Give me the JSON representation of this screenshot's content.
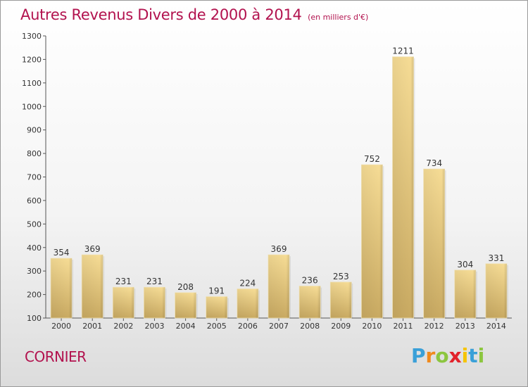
{
  "header": {
    "title": "Autres Revenus Divers de 2000 à 2014",
    "subtitle": "(en milliers d'€)"
  },
  "footer": {
    "commune": "CORNIER",
    "logo_letters": [
      "P",
      "r",
      "o",
      "x",
      "i",
      "t",
      "i"
    ],
    "logo_colors": [
      "#3aa0d8",
      "#f08a1c",
      "#8cc63f",
      "#e2222b",
      "#f5c400",
      "#3aa0d8",
      "#8cc63f"
    ]
  },
  "chart_data": {
    "type": "bar",
    "categories": [
      "2000",
      "2001",
      "2002",
      "2003",
      "2004",
      "2005",
      "2006",
      "2007",
      "2008",
      "2009",
      "2010",
      "2011",
      "2012",
      "2013",
      "2014"
    ],
    "values": [
      354,
      369,
      231,
      231,
      208,
      191,
      224,
      369,
      236,
      253,
      752,
      1211,
      734,
      304,
      331
    ],
    "title": "Autres Revenus Divers de 2000 à 2014",
    "xlabel": "",
    "ylabel": "",
    "ylim": [
      100,
      1300
    ],
    "yticks": [
      100,
      200,
      300,
      400,
      500,
      600,
      700,
      800,
      900,
      1000,
      1100,
      1200,
      1300
    ],
    "grid": false,
    "legend": "none",
    "bar_color": "#e8cc80"
  }
}
